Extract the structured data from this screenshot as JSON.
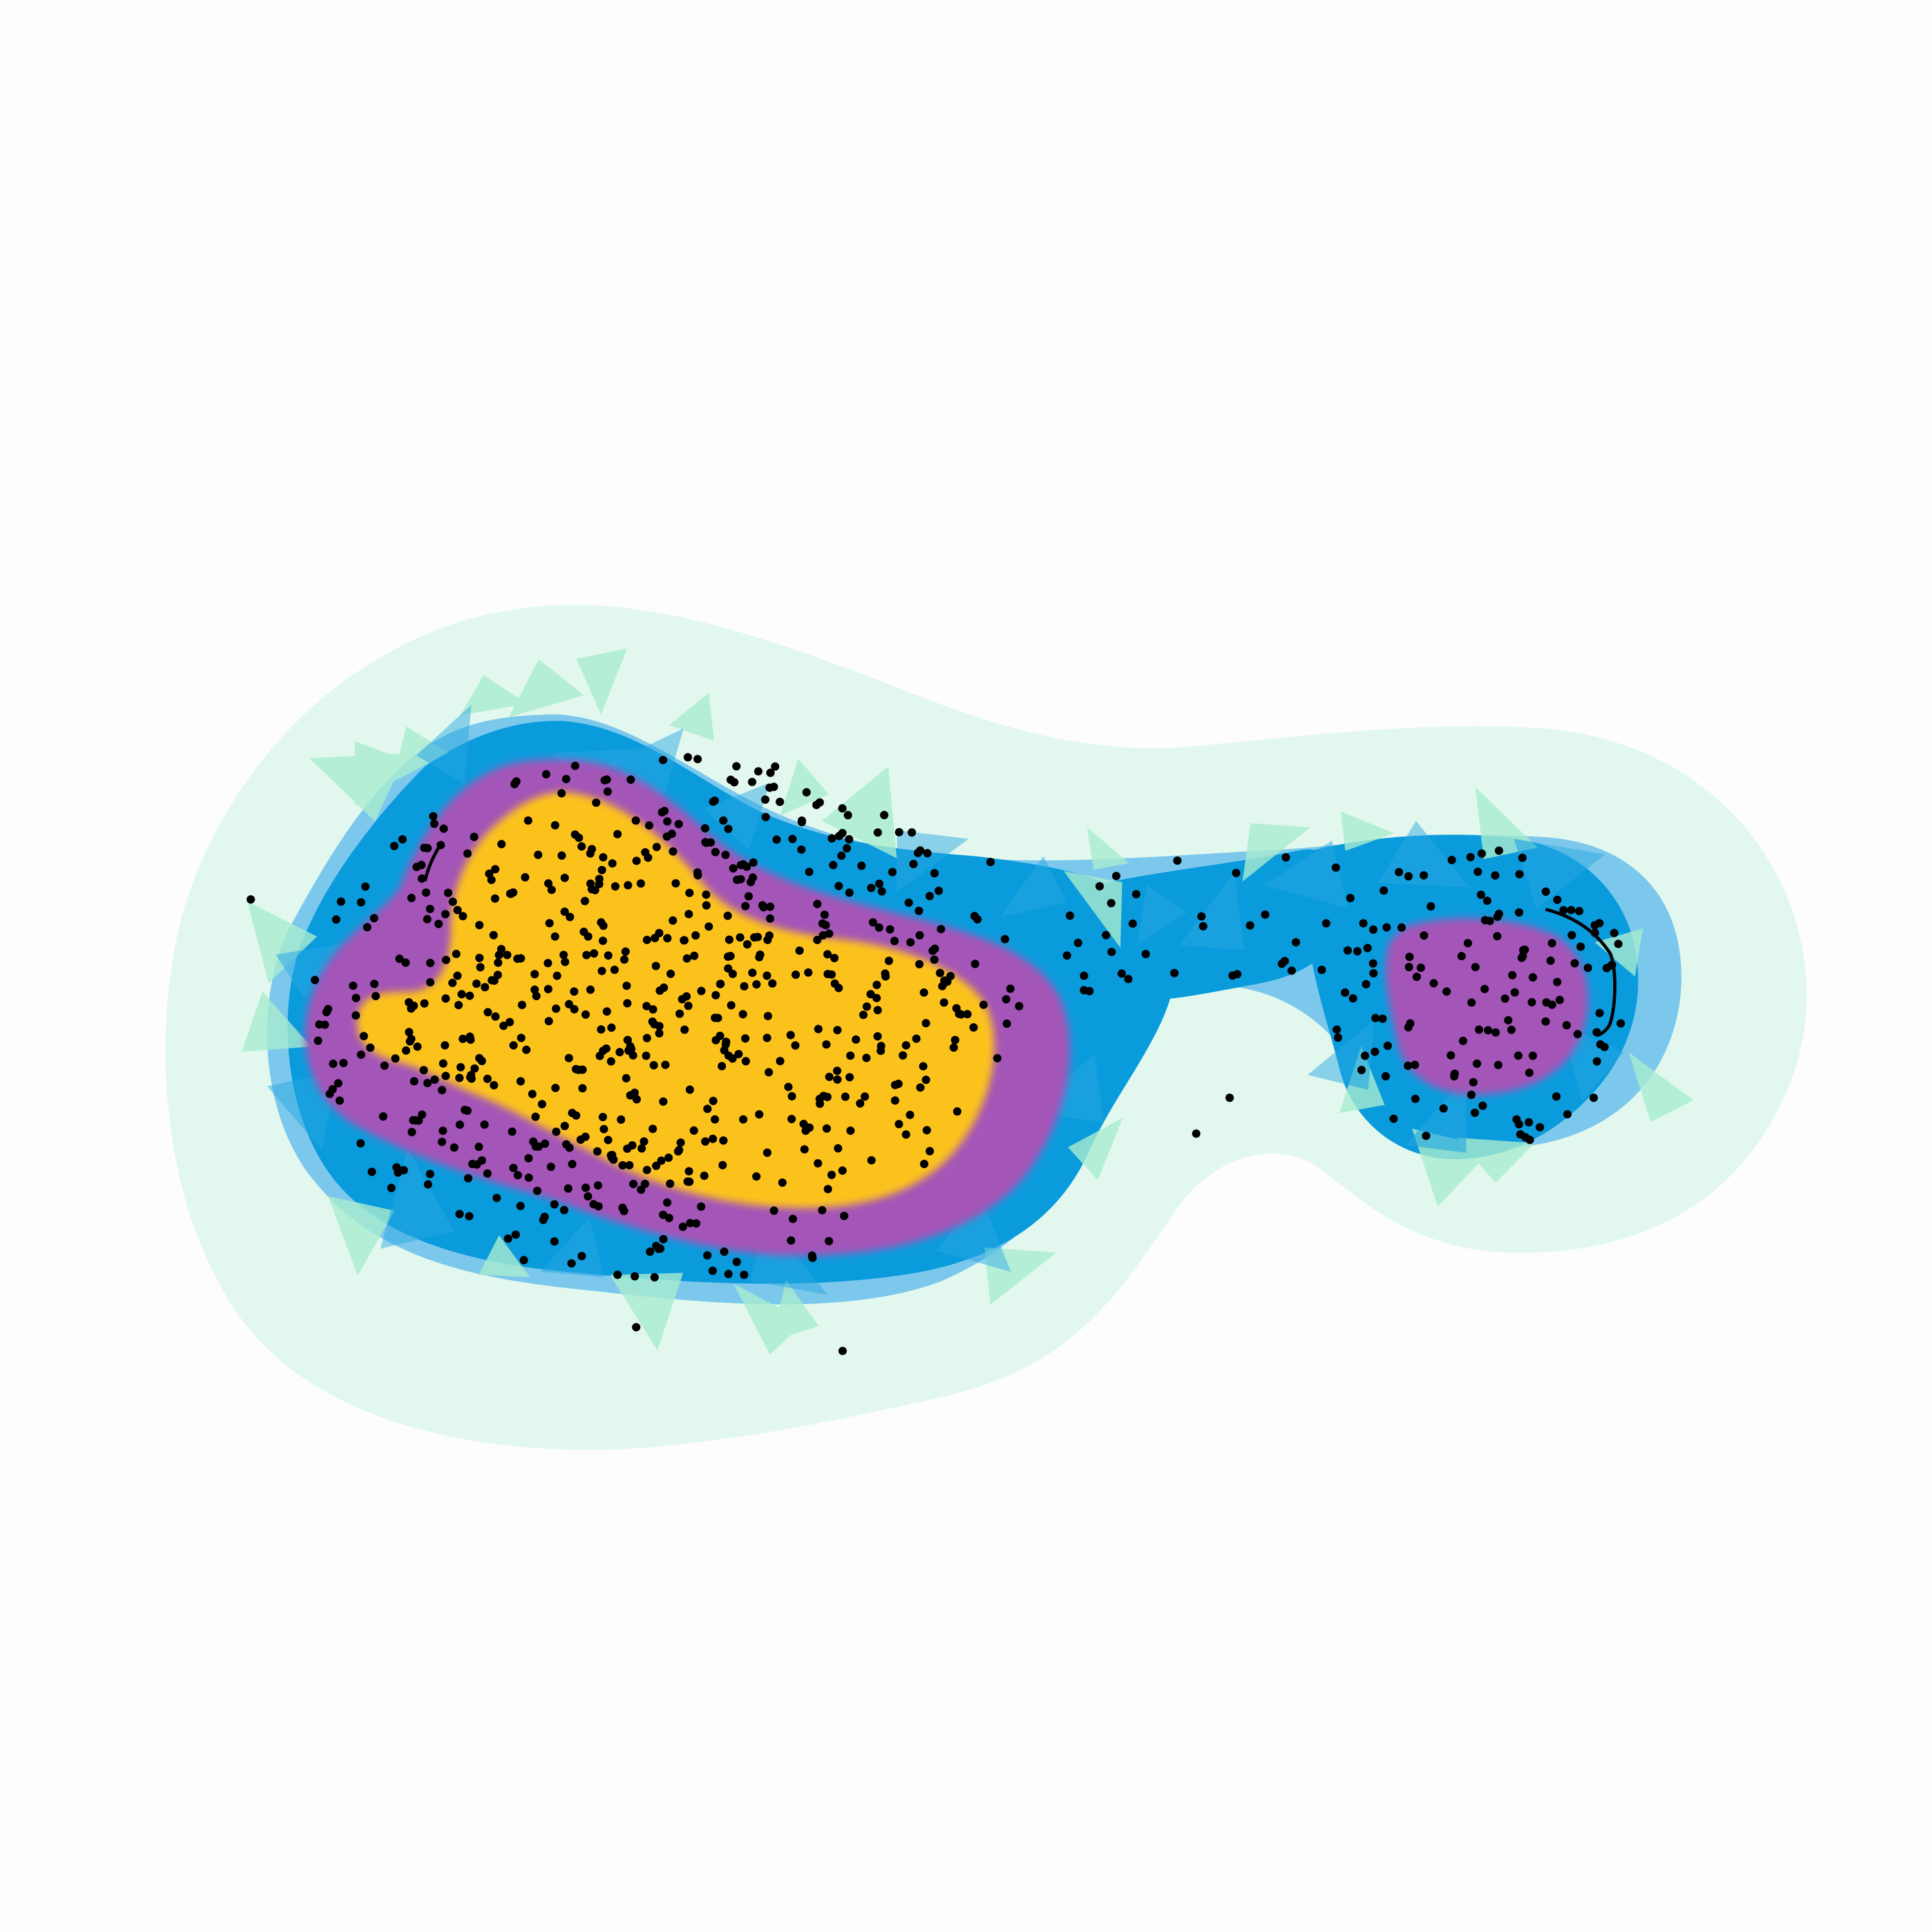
{
  "diagram": {
    "kind": "filtration-density-regions",
    "regions": [
      {
        "name": "outer-halo",
        "color": "#e2f8ee"
      },
      {
        "name": "alpha-complex-triangles",
        "color": "#a8ecd0"
      },
      {
        "name": "light-blue-band",
        "color": "#7cc8ec"
      },
      {
        "name": "blue-core",
        "color": "#0a9bdc"
      },
      {
        "name": "purple-band",
        "color": "#a455b8"
      },
      {
        "name": "yellow-core",
        "color": "#fcc21e"
      }
    ],
    "points": {
      "color": "#000000",
      "count": 820
    }
  }
}
